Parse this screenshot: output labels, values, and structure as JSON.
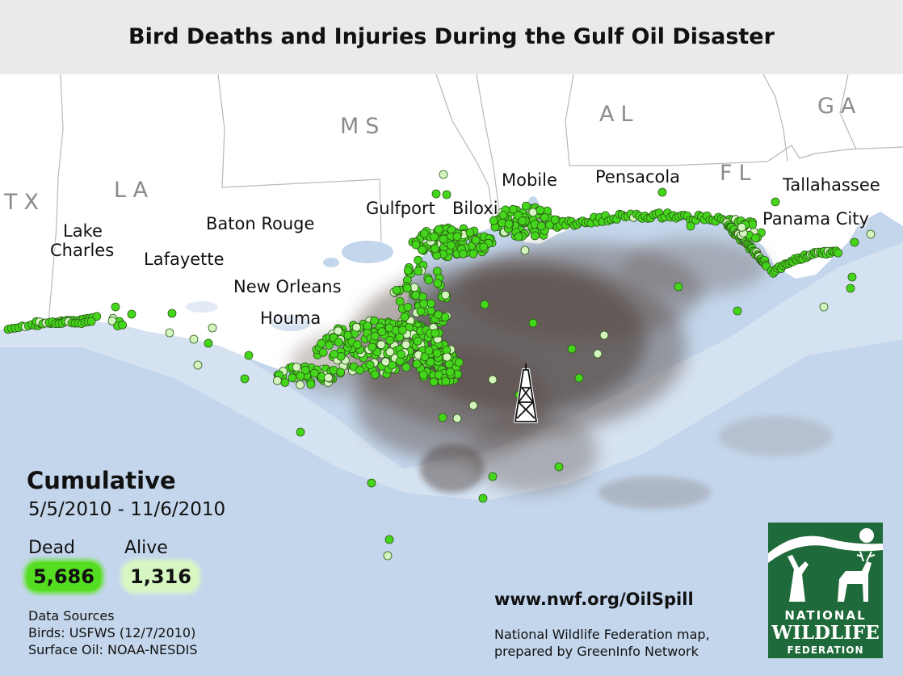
{
  "title": "Bird Deaths and Injuries During the Gulf Oil Disaster",
  "states": {
    "tx": "TX",
    "la": "LA",
    "ms": "MS",
    "al": "AL",
    "fl": "FL",
    "ga": "GA"
  },
  "cities": {
    "lake_charles_1": "Lake",
    "lake_charles_2": "Charles",
    "lafayette": "Lafayette",
    "baton_rouge": "Baton Rouge",
    "new_orleans": "New Orleans",
    "houma": "Houma",
    "gulfport": "Gulfport",
    "biloxi": "Biloxi",
    "mobile": "Mobile",
    "pensacola": "Pensacola",
    "tallahassee": "Tallahassee",
    "panama_city": "Panama City"
  },
  "legend": {
    "heading": "Cumulative",
    "date_range": "5/5/2010 - 11/6/2010",
    "dead_label": "Dead",
    "alive_label": "Alive",
    "dead_count": "5,686",
    "alive_count": "1,316",
    "dead_color": "#44d61a",
    "alive_color": "#d3f5bd"
  },
  "sources": {
    "heading": "Data Sources",
    "birds": "Birds: USFWS (12/7/2010)",
    "oil": "Surface Oil: NOAA-NESDIS"
  },
  "url": "www.nwf.org/OilSpill",
  "credit": {
    "line1": "National Wildlife Federation map,",
    "line2": "prepared by GreenInfo Network"
  },
  "logo": {
    "line1": "NATIONAL",
    "line2": "WILDLIFE",
    "line3": "FEDERATION",
    "color": "#1f6a3a"
  },
  "colors": {
    "water": "#c4d6ec",
    "land": "#ffffff",
    "oil": "#4a3a34",
    "border": "#bbbbbb"
  },
  "icons": {
    "rig": "oil-rig-icon"
  }
}
